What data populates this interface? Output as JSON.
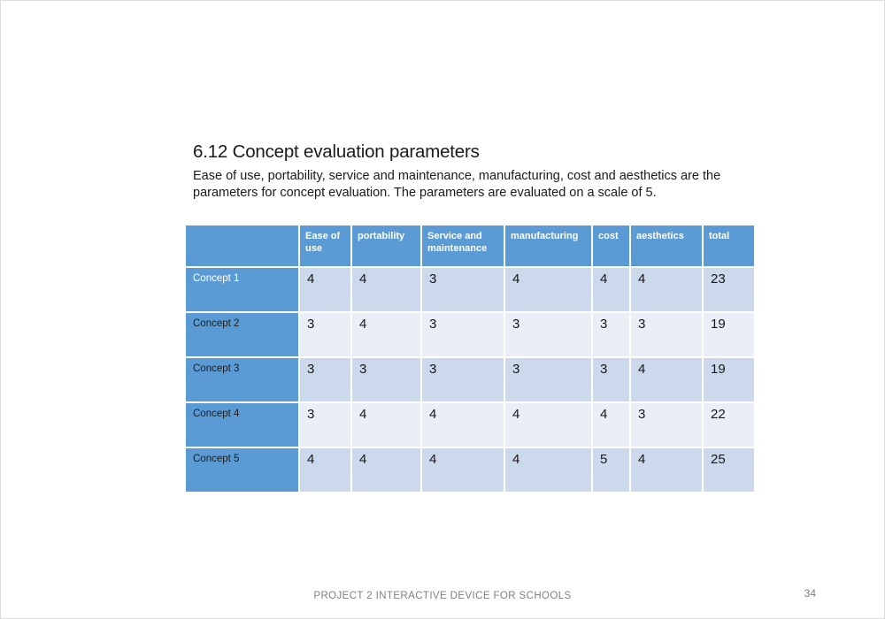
{
  "section": {
    "title": "6.12 Concept evaluation parameters",
    "paragraph": "Ease of use, portability, service and maintenance, manufacturing, cost and aesthetics are the parameters for concept evaluation. The parameters are evaluated on a scale of 5."
  },
  "table": {
    "columns": [
      "",
      "Ease of use",
      "portability",
      "Service and maintenance",
      "manufacturing",
      "cost",
      "aesthetics",
      "total"
    ],
    "rows": [
      {
        "label": "Concept 1",
        "values": [
          "4",
          "4",
          "3",
          "4",
          "4",
          "4",
          "23"
        ]
      },
      {
        "label": "Concept 2",
        "values": [
          "3",
          "4",
          "3",
          "3",
          "3",
          "3",
          "19"
        ]
      },
      {
        "label": "Concept 3",
        "values": [
          "3",
          "3",
          "3",
          "3",
          "3",
          "4",
          "19"
        ]
      },
      {
        "label": "Concept 4",
        "values": [
          "3",
          "4",
          "4",
          "4",
          "4",
          "3",
          "22"
        ]
      },
      {
        "label": "Concept 5",
        "values": [
          "4",
          "4",
          "4",
          "4",
          "5",
          "4",
          "25"
        ]
      }
    ]
  },
  "footer": {
    "text": "PROJECT 2 INTERACTIVE DEVICE FOR SCHOOLS",
    "page_number": "34"
  },
  "colors": {
    "header_fill": "#5b9bd5",
    "row_label_fill": "#5b9bd5",
    "band_dark": "#ccd9ec",
    "band_light": "#e9eef7",
    "header_text": "#ffffff",
    "row1_label_text": "#ffffff",
    "other_row_label_text": "#1c1c1c",
    "footer_text": "#7f7f7f"
  }
}
